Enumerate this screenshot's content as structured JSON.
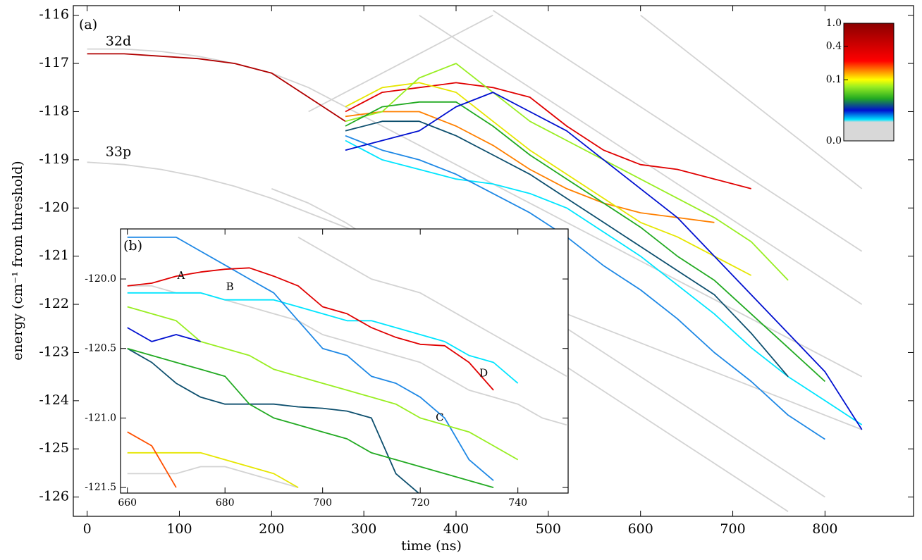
{
  "chart_data": [
    {
      "type": "line",
      "xlabel": "time (ns)",
      "ylabel": "energy (cm⁻¹  from threshold)",
      "panel_label": "(a)",
      "xlim": [
        -15,
        896
      ],
      "ylim": [
        -126.4,
        -115.8
      ],
      "xticks": [
        0,
        100,
        200,
        300,
        400,
        500,
        600,
        700,
        800
      ],
      "yticks": [
        -116,
        -117,
        -118,
        -119,
        -120,
        -121,
        -122,
        -123,
        -124,
        -125,
        -126
      ],
      "x": [
        0,
        40,
        80,
        120,
        160,
        200,
        240,
        280,
        320,
        360,
        400,
        440,
        480,
        520,
        560,
        600,
        640,
        680,
        720,
        760,
        800,
        840
      ],
      "series": [
        {
          "color": "#d3d3d3",
          "values": [
            -119.05,
            -119.1,
            -119.2,
            -119.35,
            -119.55,
            -119.8,
            -120.1,
            -120.4,
            -120.7,
            -121.0,
            -121.3,
            -121.6,
            -121.9,
            -122.2,
            -122.5,
            -122.8,
            -123.1,
            -123.4,
            -123.7,
            -124.0,
            -124.3,
            -124.6
          ]
        },
        {
          "color": "#d3d3d3",
          "values": [
            null,
            null,
            null,
            null,
            null,
            null,
            -118.0,
            -117.6,
            -117.2,
            -116.8,
            -116.4,
            -116.0,
            null,
            null,
            null,
            null,
            null,
            null,
            null,
            null,
            null,
            null
          ]
        },
        {
          "color": "#d3d3d3",
          "values": [
            -116.7,
            -116.7,
            -116.75,
            -116.85,
            -117.0,
            -117.2,
            -117.5,
            -117.9,
            -118.3,
            -118.7,
            -119.1,
            -119.5,
            -119.9,
            -120.3,
            -120.7,
            -121.1,
            -121.5,
            -121.9,
            -122.3,
            -122.7,
            -123.1,
            -123.5
          ]
        },
        {
          "color": "#d3d3d3",
          "values": [
            null,
            null,
            null,
            null,
            null,
            null,
            null,
            null,
            null,
            null,
            null,
            -115.9,
            -116.4,
            -116.9,
            -117.4,
            -117.9,
            -118.4,
            -118.9,
            -119.4,
            -119.9,
            -120.4,
            -120.9
          ]
        },
        {
          "color": "#d3d3d3",
          "values": [
            null,
            null,
            null,
            null,
            null,
            null,
            null,
            null,
            null,
            -116.0,
            -116.5,
            -117.0,
            -117.5,
            -118.0,
            -118.5,
            -119.0,
            -119.5,
            -120.0,
            -120.5,
            -121.0,
            -121.5,
            -122.0
          ]
        },
        {
          "color": "#d3d3d3",
          "values": [
            null,
            null,
            null,
            null,
            null,
            -119.6,
            -119.9,
            -120.3,
            -120.8,
            -121.3,
            -121.8,
            -122.3,
            -122.8,
            -123.3,
            -123.8,
            -124.3,
            -124.8,
            -125.3,
            -125.8,
            -126.3,
            null,
            null
          ]
        },
        {
          "color": "#d3d3d3",
          "values": [
            null,
            null,
            null,
            null,
            null,
            null,
            null,
            null,
            null,
            null,
            null,
            null,
            -122.0,
            -122.5,
            -123.0,
            -123.5,
            -124.0,
            -124.5,
            -125.0,
            -125.5,
            -126.0,
            null
          ]
        },
        {
          "color": "#d3d3d3",
          "values": [
            null,
            null,
            null,
            null,
            null,
            null,
            null,
            null,
            null,
            null,
            null,
            null,
            null,
            null,
            null,
            -116.0,
            -116.6,
            -117.2,
            -117.8,
            -118.4,
            -119.0,
            -119.6
          ]
        },
        {
          "color": "#b00000",
          "values": [
            -116.8,
            -116.8,
            -116.85,
            -116.9,
            -117.0,
            -117.2,
            -117.7,
            -118.2,
            null,
            null,
            null,
            null,
            null,
            null,
            null,
            null,
            null,
            null,
            null,
            null,
            null,
            null
          ]
        },
        {
          "color": "#e00000",
          "values": [
            null,
            null,
            null,
            null,
            null,
            null,
            null,
            -118.0,
            -117.6,
            -117.5,
            -117.4,
            -117.5,
            -117.7,
            -118.3,
            -118.8,
            -119.1,
            -119.2,
            -119.4,
            -119.6,
            null,
            null,
            null
          ]
        },
        {
          "color": "#ff8000",
          "values": [
            null,
            null,
            null,
            null,
            null,
            null,
            null,
            -118.1,
            -118.0,
            -118.0,
            -118.3,
            -118.7,
            -119.2,
            -119.6,
            -119.9,
            -120.1,
            -120.2,
            -120.3,
            null,
            null,
            null,
            null
          ]
        },
        {
          "color": "#e6e600",
          "values": [
            null,
            null,
            null,
            null,
            null,
            null,
            null,
            -117.9,
            -117.5,
            -117.4,
            -117.6,
            -118.2,
            -118.8,
            -119.3,
            -119.8,
            -120.3,
            -120.6,
            -121.0,
            -121.4,
            null,
            null,
            null
          ]
        },
        {
          "color": "#99ee22",
          "values": [
            null,
            null,
            null,
            null,
            null,
            null,
            null,
            -118.2,
            -118.0,
            -117.3,
            -117.0,
            -117.6,
            -118.2,
            -118.6,
            -119.0,
            -119.4,
            -119.8,
            -120.2,
            -120.7,
            -121.5,
            null,
            null
          ]
        },
        {
          "color": "#22aa22",
          "values": [
            null,
            null,
            null,
            null,
            null,
            null,
            null,
            -118.3,
            -117.9,
            -117.8,
            -117.8,
            -118.3,
            -118.9,
            -119.4,
            -119.9,
            -120.4,
            -121.0,
            -121.5,
            -122.2,
            -122.9,
            -123.6,
            null
          ]
        },
        {
          "color": "#00e5ff",
          "values": [
            null,
            null,
            null,
            null,
            null,
            null,
            null,
            -118.6,
            -119.0,
            -119.2,
            -119.4,
            -119.5,
            -119.7,
            -120.0,
            -120.5,
            -121.0,
            -121.6,
            -122.2,
            -122.9,
            -123.5,
            -124.0,
            -124.5
          ]
        },
        {
          "color": "#1e88e5",
          "values": [
            null,
            null,
            null,
            null,
            null,
            null,
            null,
            -118.5,
            -118.8,
            -119.0,
            -119.3,
            -119.7,
            -120.1,
            -120.6,
            -121.2,
            -121.7,
            -122.3,
            -123.0,
            -123.6,
            -124.3,
            -124.8,
            null
          ]
        },
        {
          "color": "#0010d0",
          "values": [
            null,
            null,
            null,
            null,
            null,
            null,
            null,
            -118.8,
            -118.6,
            -118.4,
            -117.9,
            -117.6,
            -118.0,
            -118.4,
            -119.0,
            -119.6,
            -120.2,
            -121.0,
            -121.8,
            -122.6,
            -123.4,
            -124.6
          ]
        },
        {
          "color": "#0d4f6e",
          "values": [
            null,
            null,
            null,
            null,
            null,
            null,
            null,
            -118.4,
            -118.2,
            -118.2,
            -118.5,
            -118.9,
            -119.3,
            -119.8,
            -120.3,
            -120.8,
            -121.3,
            -121.8,
            -122.6,
            -123.5,
            null,
            null
          ]
        }
      ],
      "annotations": [
        {
          "text": "32d",
          "x": 20,
          "y": -116.55
        },
        {
          "text": "33p",
          "x": 20,
          "y": -118.85
        }
      ],
      "colorbar": {
        "ticks": [
          {
            "value": 0,
            "label": "0.0"
          },
          0.1,
          0.4,
          {
            "value": 1,
            "label": "1.0"
          }
        ]
      }
    },
    {
      "type": "line",
      "panel_label": "(b)",
      "xlim": [
        658.6,
        750.3
      ],
      "ylim": [
        -121.54,
        -119.64
      ],
      "xticks": [
        660,
        680,
        700,
        720,
        740
      ],
      "yticks": [
        {
          "value": -120,
          "label": "-120.0"
        },
        -120.5,
        {
          "value": -121,
          "label": "-121.0"
        },
        -121.5
      ],
      "x": [
        660,
        665,
        670,
        675,
        680,
        685,
        690,
        695,
        700,
        705,
        710,
        715,
        720,
        725,
        730,
        735,
        740,
        745,
        750
      ],
      "series": [
        {
          "color": "#d3d3d3",
          "values": [
            -120.05,
            -120.05,
            -120.1,
            -120.1,
            -120.15,
            -120.2,
            -120.25,
            -120.3,
            -120.4,
            -120.45,
            -120.5,
            -120.55,
            -120.6,
            -120.7,
            -120.8,
            -120.85,
            -120.9,
            -121.0,
            -121.05
          ]
        },
        {
          "color": "#d3d3d3",
          "values": [
            null,
            null,
            null,
            null,
            null,
            null,
            null,
            -119.7,
            -119.8,
            -119.9,
            -120.0,
            -120.05,
            -120.1,
            -120.2,
            -120.3,
            -120.4,
            -120.5,
            -120.6,
            -120.7
          ]
        },
        {
          "color": "#d3d3d3",
          "values": [
            -121.4,
            -121.4,
            -121.4,
            -121.35,
            -121.35,
            -121.4,
            -121.45,
            -121.5,
            null,
            null,
            null,
            null,
            null,
            null,
            null,
            null,
            null,
            null,
            null
          ]
        },
        {
          "color": "#00e5ff",
          "values": [
            -120.1,
            -120.1,
            -120.1,
            -120.1,
            -120.15,
            -120.15,
            -120.15,
            -120.2,
            -120.25,
            -120.3,
            -120.3,
            -120.35,
            -120.4,
            -120.45,
            -120.55,
            -120.6,
            -120.75,
            null,
            null
          ]
        },
        {
          "color": "#1e88e5",
          "values": [
            -119.7,
            -119.7,
            -119.7,
            -119.8,
            -119.9,
            -120.0,
            -120.1,
            -120.3,
            -120.5,
            -120.55,
            -120.7,
            -120.75,
            -120.85,
            -121.0,
            -121.3,
            -121.45,
            null,
            null,
            null
          ]
        },
        {
          "color": "#99ee22",
          "values": [
            -120.2,
            -120.25,
            -120.3,
            -120.45,
            -120.5,
            -120.55,
            -120.65,
            -120.7,
            -120.75,
            -120.8,
            -120.85,
            -120.9,
            -121.0,
            -121.05,
            -121.1,
            -121.2,
            -121.3,
            null,
            null
          ]
        },
        {
          "color": "#0d4f6e",
          "values": [
            -120.5,
            -120.6,
            -120.75,
            -120.85,
            -120.9,
            -120.9,
            -120.9,
            -120.92,
            -120.93,
            -120.95,
            -121.0,
            -121.4,
            -121.55,
            null,
            null,
            null,
            null,
            null,
            null
          ]
        },
        {
          "color": "#22aa22",
          "values": [
            -120.5,
            -120.55,
            -120.6,
            -120.65,
            -120.7,
            -120.9,
            -121.0,
            -121.05,
            -121.1,
            -121.15,
            -121.25,
            -121.3,
            -121.35,
            -121.4,
            -121.45,
            -121.5,
            null,
            null,
            null
          ]
        },
        {
          "color": "#0010d0",
          "values": [
            -120.35,
            -120.45,
            -120.4,
            -120.45,
            null,
            null,
            null,
            null,
            null,
            null,
            null,
            null,
            null,
            null,
            null,
            null,
            null,
            null,
            null
          ]
        },
        {
          "color": "#e6e600",
          "values": [
            -121.25,
            -121.25,
            -121.25,
            -121.25,
            -121.3,
            -121.35,
            -121.4,
            -121.5,
            null,
            null,
            null,
            null,
            null,
            null,
            null,
            null,
            null,
            null,
            null
          ]
        },
        {
          "color": "#ff5000",
          "values": [
            -121.1,
            -121.2,
            -121.5,
            null,
            null,
            null,
            null,
            null,
            null,
            null,
            null,
            null,
            null,
            null,
            null,
            null,
            null,
            null,
            null
          ]
        },
        {
          "color": "#e00000",
          "values": [
            -120.05,
            -120.03,
            -119.98,
            -119.95,
            -119.93,
            -119.92,
            -119.98,
            -120.05,
            -120.2,
            -120.25,
            -120.35,
            -120.42,
            -120.47,
            -120.48,
            -120.6,
            -120.8,
            null,
            null,
            null
          ]
        }
      ],
      "annotations": [
        {
          "text": "A",
          "x": 671,
          "y": -119.98
        },
        {
          "text": "B",
          "x": 681,
          "y": -120.06
        },
        {
          "text": "C",
          "x": 724,
          "y": -121.0
        },
        {
          "text": "D",
          "x": 733,
          "y": -120.68
        }
      ]
    }
  ]
}
